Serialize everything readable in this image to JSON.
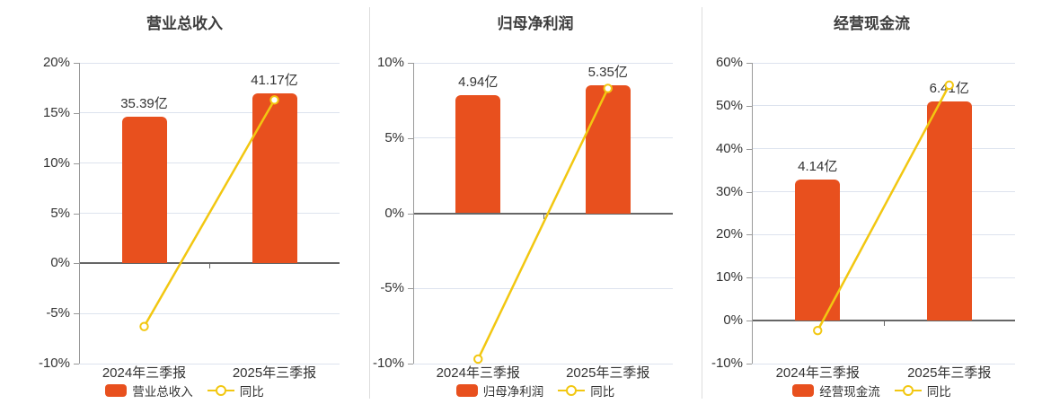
{
  "colors": {
    "bar": "#E8501E",
    "line": "#F2C711",
    "grid": "#DDE3EE",
    "zero_axis": "#666666",
    "axis": "#999999",
    "text": "#333333",
    "title": "#3d3d3d",
    "divider": "#dddddd",
    "marker_fill": "#ffffff",
    "background": "#ffffff"
  },
  "chart_data": [
    {
      "type": "bar",
      "title": "营业总收入",
      "categories": [
        "2024年三季报",
        "2025年三季报"
      ],
      "bar_series": {
        "name": "营业总收入",
        "unit": "亿",
        "values": [
          35.39,
          41.17
        ],
        "labels": [
          "35.39亿",
          "41.17亿"
        ]
      },
      "line_series": {
        "name": "同比",
        "unit": "%",
        "values": [
          -6.3,
          16.3
        ],
        "marker": "hollow-circle"
      },
      "y_axis": {
        "min": -10,
        "max": 20,
        "step": 5,
        "tick_labels": [
          "20%",
          "15%",
          "10%",
          "5%",
          "0%",
          "-5%",
          "-10%"
        ]
      },
      "legend": [
        "营业总收入",
        "同比"
      ],
      "grid": true,
      "legend_position": "bottom"
    },
    {
      "type": "bar",
      "title": "归母净利润",
      "categories": [
        "2024年三季报",
        "2025年三季报"
      ],
      "bar_series": {
        "name": "归母净利润",
        "unit": "亿",
        "values": [
          4.94,
          5.35
        ],
        "labels": [
          "4.94亿",
          "5.35亿"
        ]
      },
      "line_series": {
        "name": "同比",
        "unit": "%",
        "values": [
          -9.7,
          8.3
        ],
        "marker": "hollow-circle"
      },
      "y_axis": {
        "min": -10,
        "max": 10,
        "step": 5,
        "tick_labels": [
          "10%",
          "5%",
          "0%",
          "-5%",
          "-10%"
        ]
      },
      "legend": [
        "归母净利润",
        "同比"
      ],
      "grid": true,
      "legend_position": "bottom"
    },
    {
      "type": "bar",
      "title": "经营现金流",
      "categories": [
        "2024年三季报",
        "2025年三季报"
      ],
      "bar_series": {
        "name": "经营现金流",
        "unit": "亿",
        "values": [
          4.14,
          6.41
        ],
        "labels": [
          "4.14亿",
          "6.41亿"
        ]
      },
      "line_series": {
        "name": "同比",
        "unit": "%",
        "values": [
          -2.3,
          54.8
        ],
        "marker": "hollow-circle"
      },
      "y_axis": {
        "min": -10,
        "max": 60,
        "step": 10,
        "tick_labels": [
          "60%",
          "50%",
          "40%",
          "30%",
          "20%",
          "10%",
          "0%",
          "-10%"
        ]
      },
      "legend": [
        "经营现金流",
        "同比"
      ],
      "grid": true,
      "legend_position": "bottom"
    }
  ]
}
